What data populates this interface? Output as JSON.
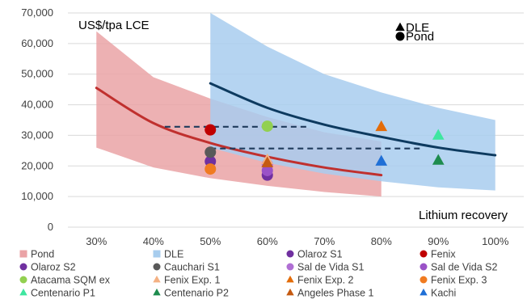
{
  "chart_data": {
    "type": "line",
    "title": "",
    "ylabel": "US$/tpa LCE",
    "xlabel": "Lithium recovery",
    "x_ticks": [
      "30%",
      "40%",
      "50%",
      "60%",
      "70%",
      "80%",
      "90%",
      "100%"
    ],
    "y_ticks": [
      "0",
      "10,000",
      "20,000",
      "30,000",
      "40,000",
      "50,000",
      "60,000",
      "70,000"
    ],
    "xlim": [
      25,
      105
    ],
    "ylim": [
      0,
      70000
    ],
    "grid": "horizontal",
    "marker_key": [
      {
        "label": "DLE",
        "shape": "triangle"
      },
      {
        "label": "Pond",
        "shape": "circle"
      }
    ],
    "bands": [
      {
        "name": "Pond",
        "color": "#eaa3a6",
        "upper": [
          [
            30,
            64000
          ],
          [
            40,
            49000
          ],
          [
            50,
            42000
          ],
          [
            60,
            36000
          ],
          [
            70,
            31000
          ],
          [
            80,
            28000
          ]
        ],
        "lower": [
          [
            30,
            26000
          ],
          [
            40,
            19500
          ],
          [
            50,
            16000
          ],
          [
            60,
            13500
          ],
          [
            70,
            11500
          ],
          [
            80,
            10000
          ]
        ]
      },
      {
        "name": "DLE",
        "color": "#a8cdee",
        "upper": [
          [
            50,
            70000
          ],
          [
            60,
            59000
          ],
          [
            70,
            50000
          ],
          [
            80,
            44000
          ],
          [
            90,
            39000
          ],
          [
            100,
            35000
          ]
        ],
        "lower": [
          [
            50,
            26000
          ],
          [
            60,
            21000
          ],
          [
            70,
            17500
          ],
          [
            80,
            15000
          ],
          [
            90,
            13000
          ],
          [
            100,
            12000
          ]
        ]
      }
    ],
    "lines": [
      {
        "name": "Pond mid",
        "color": "#c0302e",
        "points": [
          [
            30,
            45500
          ],
          [
            40,
            34000
          ],
          [
            50,
            27500
          ],
          [
            60,
            23000
          ],
          [
            70,
            19500
          ],
          [
            80,
            17000
          ]
        ]
      },
      {
        "name": "DLE mid",
        "color": "#0d3a5f",
        "points": [
          [
            50,
            47000
          ],
          [
            60,
            39000
          ],
          [
            70,
            33500
          ],
          [
            80,
            29500
          ],
          [
            90,
            26000
          ],
          [
            100,
            23500
          ]
        ]
      }
    ],
    "dashed_lines": [
      {
        "x1": 42,
        "x2": 67,
        "y": 32800,
        "color": "#1f3b5c"
      },
      {
        "x1": 50,
        "x2": 87,
        "y": 25700,
        "color": "#1f3b5c"
      }
    ],
    "points": [
      {
        "name": "Olaroz S1",
        "shape": "circle",
        "color": "#7030a0",
        "x": 60,
        "y": 17000
      },
      {
        "name": "Fenix",
        "shape": "circle",
        "color": "#c00000",
        "x": 50,
        "y": 31800
      },
      {
        "name": "Olaroz S2",
        "shape": "circle",
        "color": "#7030a0",
        "x": 50,
        "y": 21500
      },
      {
        "name": "Cauchari S1",
        "shape": "circle",
        "color": "#595959",
        "x": 50,
        "y": 24500
      },
      {
        "name": "Sal de Vida S1",
        "shape": "circle",
        "color": "#b06fd4",
        "x": 60,
        "y": 20500
      },
      {
        "name": "Sal de Vida S2",
        "shape": "circle",
        "color": "#9a52c7",
        "x": 60,
        "y": 18500
      },
      {
        "name": "Atacama SQM ex",
        "shape": "circle",
        "color": "#92d050",
        "x": 60,
        "y": 33000
      },
      {
        "name": "Fenix Exp. 1",
        "shape": "triangle",
        "color": "#f4b183",
        "x": 60,
        "y": 22000
      },
      {
        "name": "Fenix Exp. 2",
        "shape": "triangle",
        "color": "#e36c09",
        "x": 80,
        "y": 32800
      },
      {
        "name": "Fenix Exp. 3",
        "shape": "circle",
        "color": "#f07b21",
        "x": 50,
        "y": 19000
      },
      {
        "name": "Centenario P1",
        "shape": "triangle",
        "color": "#3ee6a0",
        "x": 90,
        "y": 30000
      },
      {
        "name": "Centenario P2",
        "shape": "triangle",
        "color": "#1e8c4e",
        "x": 90,
        "y": 21800
      },
      {
        "name": "Angeles Phase 1",
        "shape": "triangle",
        "color": "#c55a11",
        "x": 60,
        "y": 21000
      },
      {
        "name": "Kachi",
        "shape": "triangle",
        "color": "#1f6fd6",
        "x": 80,
        "y": 21500
      }
    ],
    "legend": {
      "placement": "bottom",
      "columns": 4,
      "items": [
        {
          "label": "Pond",
          "shape": "square",
          "color": "#eaa3a6"
        },
        {
          "label": "DLE",
          "shape": "square",
          "color": "#a8cdee"
        },
        {
          "label": "Olaroz S1",
          "shape": "circle",
          "color": "#7030a0"
        },
        {
          "label": "Fenix",
          "shape": "circle",
          "color": "#c00000"
        },
        {
          "label": "Olaroz S2",
          "shape": "circle",
          "color": "#7030a0"
        },
        {
          "label": "Cauchari S1",
          "shape": "circle",
          "color": "#595959"
        },
        {
          "label": "Sal de Vida S1",
          "shape": "circle",
          "color": "#b06fd4"
        },
        {
          "label": "Sal de Vida S2",
          "shape": "circle",
          "color": "#9a52c7"
        },
        {
          "label": "Atacama SQM ex",
          "shape": "circle",
          "color": "#92d050"
        },
        {
          "label": "Fenix Exp. 1",
          "shape": "triangle",
          "color": "#f4b183"
        },
        {
          "label": "Fenix Exp. 2",
          "shape": "triangle",
          "color": "#e36c09"
        },
        {
          "label": "Fenix Exp. 3",
          "shape": "circle",
          "color": "#f07b21"
        },
        {
          "label": "Centenario P1",
          "shape": "triangle",
          "color": "#3ee6a0"
        },
        {
          "label": "Centenario P2",
          "shape": "triangle",
          "color": "#1e8c4e"
        },
        {
          "label": "Angeles Phase 1",
          "shape": "triangle",
          "color": "#c55a11"
        },
        {
          "label": "Kachi",
          "shape": "triangle",
          "color": "#1f6fd6"
        }
      ]
    }
  }
}
